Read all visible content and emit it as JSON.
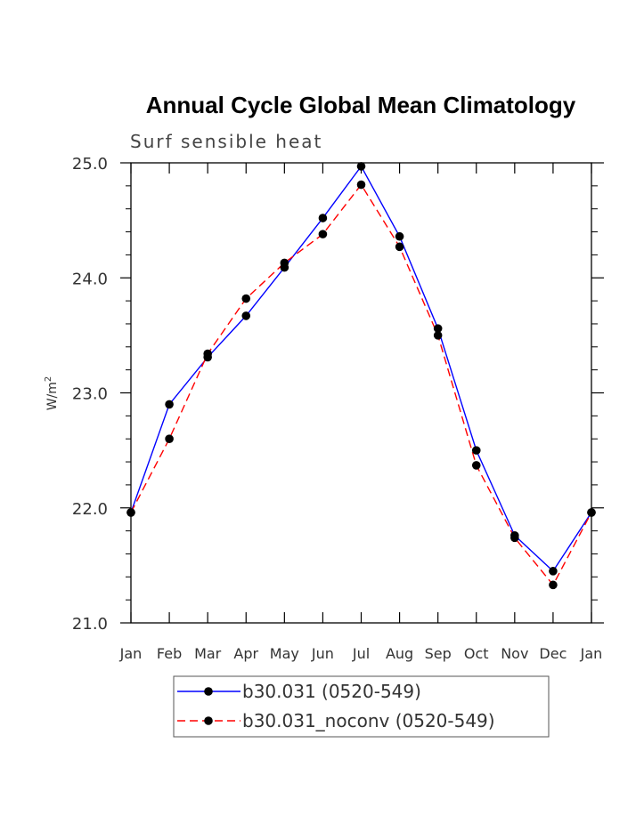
{
  "chart_data": {
    "type": "line",
    "title": "Annual Cycle Global Mean Climatology",
    "subtitle": "Surf sensible heat",
    "xlabel": "",
    "ylabel": "W/m",
    "ylabel_superscript": "2",
    "categories": [
      "Jan",
      "Feb",
      "Mar",
      "Apr",
      "May",
      "Jun",
      "Jul",
      "Aug",
      "Sep",
      "Oct",
      "Nov",
      "Dec",
      "Jan"
    ],
    "ylim": [
      21.0,
      25.0
    ],
    "yticks": [
      "21.0",
      "22.0",
      "23.0",
      "24.0",
      "25.0"
    ],
    "ytick_values": [
      21.0,
      22.0,
      23.0,
      24.0,
      25.0
    ],
    "legend_position": "bottom",
    "series": [
      {
        "name": "b30.031 (0520-549)",
        "color": "#0000ff",
        "style": "solid",
        "values": [
          21.96,
          22.9,
          23.31,
          23.67,
          24.09,
          24.52,
          24.97,
          24.36,
          23.56,
          22.5,
          21.76,
          21.45,
          21.96
        ]
      },
      {
        "name": "b30.031_noconv (0520-549)",
        "color": "#ff0000",
        "style": "dashed",
        "values": [
          21.96,
          22.6,
          23.34,
          23.82,
          24.13,
          24.38,
          24.81,
          24.27,
          23.5,
          22.37,
          21.74,
          21.33,
          21.96
        ]
      }
    ]
  }
}
